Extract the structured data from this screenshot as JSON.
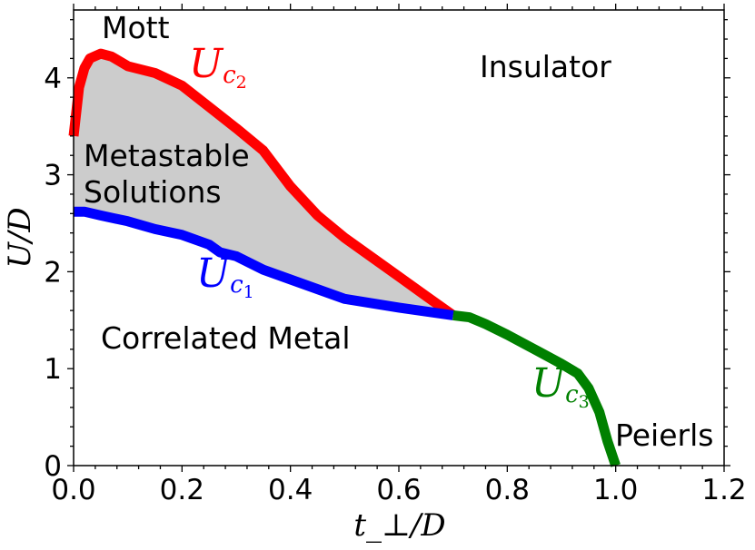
{
  "chart_data": {
    "type": "line",
    "title": "",
    "xlabel": "t_⊥/D",
    "ylabel": "U/D",
    "xlim": [
      0,
      1.2
    ],
    "ylim": [
      0,
      4.7
    ],
    "xticks": [
      0.0,
      0.2,
      0.4,
      0.6,
      0.8,
      1.0,
      1.2
    ],
    "xtick_labels": [
      "0.0",
      "0.2",
      "0.4",
      "0.6",
      "0.8",
      "1.0",
      "1.2"
    ],
    "yticks": [
      0,
      1,
      2,
      3,
      4
    ],
    "ytick_labels": [
      "0",
      "1",
      "2",
      "3",
      "4"
    ],
    "series": [
      {
        "name": "U_c2",
        "label_main": "U",
        "label_sub": "c",
        "label_subsub": "2",
        "color": "#ff0000",
        "x": [
          0.0,
          0.01,
          0.02,
          0.03,
          0.05,
          0.07,
          0.1,
          0.15,
          0.2,
          0.25,
          0.3,
          0.35,
          0.4,
          0.45,
          0.5,
          0.55,
          0.6,
          0.65,
          0.7
        ],
        "y": [
          3.4,
          3.9,
          4.1,
          4.2,
          4.25,
          4.22,
          4.12,
          4.05,
          3.92,
          3.7,
          3.48,
          3.25,
          2.88,
          2.58,
          2.35,
          2.15,
          1.95,
          1.75,
          1.55
        ]
      },
      {
        "name": "U_c1",
        "label_main": "U",
        "label_sub": "c",
        "label_subsub": "1",
        "color": "#0000ff",
        "x": [
          0.0,
          0.02,
          0.05,
          0.1,
          0.15,
          0.2,
          0.25,
          0.27,
          0.3,
          0.35,
          0.4,
          0.5,
          0.6,
          0.7
        ],
        "y": [
          2.62,
          2.62,
          2.58,
          2.52,
          2.44,
          2.38,
          2.28,
          2.2,
          2.16,
          2.02,
          1.92,
          1.72,
          1.63,
          1.55
        ]
      },
      {
        "name": "U_c3",
        "label_main": "U",
        "label_sub": "c",
        "label_subsub": "3",
        "color": "#008000",
        "x": [
          0.7,
          0.73,
          0.76,
          0.8,
          0.85,
          0.9,
          0.93,
          0.95,
          0.97,
          0.985,
          1.0
        ],
        "y": [
          1.55,
          1.53,
          1.46,
          1.35,
          1.2,
          1.05,
          0.95,
          0.8,
          0.55,
          0.25,
          0.0
        ]
      }
    ],
    "shaded_region": {
      "name": "metastable",
      "between": [
        "U_c1",
        "U_c2"
      ],
      "color": "#cccccc"
    },
    "annotations": {
      "mott": "Mott",
      "insulator": "Insulator",
      "metastable": "Metastable",
      "solutions": "Solutions",
      "correlated_metal": "Correlated Metal",
      "peierls": "Peierls"
    }
  }
}
